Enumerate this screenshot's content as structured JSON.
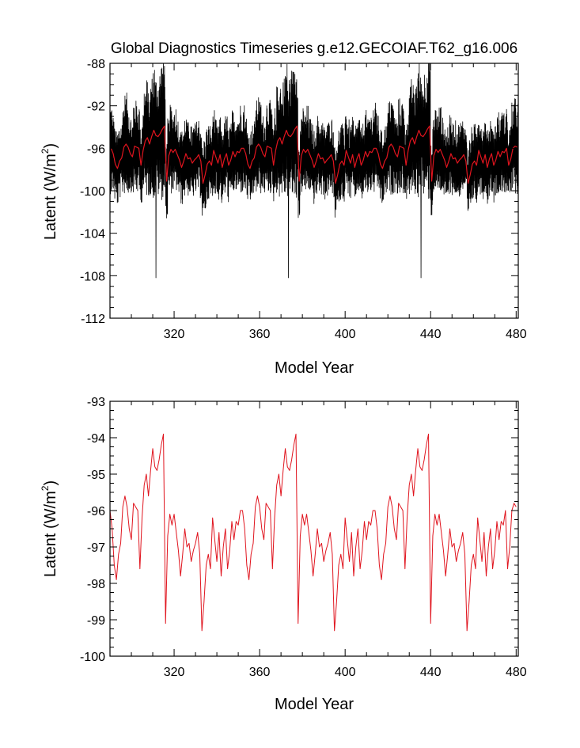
{
  "page": {
    "title": "Global Diagnostics Timeseries g.e12.GECOIAF.T62_g16.006"
  },
  "colors": {
    "monthly": "#000000",
    "annual": "#e0141e",
    "axis": "#000000"
  },
  "chart_data": [
    {
      "id": "top",
      "type": "line",
      "xlabel": "Model Year",
      "ylabel": "Latent (W/m",
      "ylabel_sup": "2",
      "ylabel_close": ")",
      "xlim": [
        290,
        481
      ],
      "ylim": [
        -112,
        -88
      ],
      "xticks": [
        320,
        360,
        400,
        440,
        480
      ],
      "xtick_labels": [
        "320",
        "360",
        "400",
        "440",
        "480"
      ],
      "yticks": [
        -112,
        -108,
        -104,
        -100,
        -96,
        -92,
        -88
      ],
      "ytick_labels": [
        "-112",
        "-108",
        "-104",
        "-100",
        "-96",
        "-92",
        "-88"
      ],
      "series": [
        {
          "name": "monthly",
          "style": "monthly-anomaly",
          "color": "#000000",
          "start_year": 290,
          "points_per_year": 12,
          "amplitude_base": 3.2,
          "amplitude_scale": 0.6,
          "spike_years": [
            311.5,
            373.5,
            435.5
          ],
          "spike_min": -108.2
        },
        {
          "name": "annual mean",
          "ref": "annual",
          "color": "#e0141e"
        }
      ]
    },
    {
      "id": "bottom",
      "type": "line",
      "xlabel": "Model Year",
      "ylabel": "Latent (W/m",
      "ylabel_sup": "2",
      "ylabel_close": ")",
      "xlim": [
        290,
        481
      ],
      "ylim": [
        -100,
        -93
      ],
      "xticks": [
        320,
        360,
        400,
        440,
        480
      ],
      "xtick_labels": [
        "320",
        "360",
        "400",
        "440",
        "480"
      ],
      "yticks": [
        -100,
        -99,
        -98,
        -97,
        -96,
        -95,
        -94,
        -93
      ],
      "ytick_labels": [
        "-100",
        "-99",
        "-98",
        "-97",
        "-96",
        "-95",
        "-94",
        "-93"
      ],
      "series": [
        {
          "name": "annual mean",
          "color": "#e0141e",
          "x_start": 290,
          "values_cycle": [
            -96.0,
            -96.5,
            -97.5,
            -97.9,
            -97.2,
            -96.9,
            -95.9,
            -95.6,
            -95.9,
            -96.5,
            -96.8,
            -95.8,
            -95.9,
            -96.0,
            -97.6,
            -96.2,
            -95.3,
            -95.0,
            -95.6,
            -94.9,
            -94.3,
            -94.8,
            -94.9,
            -94.6,
            -94.2,
            -93.9,
            -99.1,
            -96.7,
            -96.1,
            -96.4,
            -96.1,
            -96.6,
            -97.1,
            -97.8,
            -97.2,
            -96.5,
            -97.0,
            -96.9,
            -97.4,
            -97.1,
            -96.9,
            -96.6,
            -97.2,
            -99.3,
            -98.5,
            -97.5,
            -97.2,
            -97.6,
            -96.2,
            -96.8,
            -97.4,
            -96.6,
            -97.8,
            -97.0,
            -96.5,
            -97.6,
            -97.1,
            -96.3,
            -96.8,
            -96.3,
            -96.4,
            -96.0,
            -95.3,
            -96.6,
            -96.3,
            -96.9,
            -96.0,
            -96.7,
            -97.6,
            -98.0
          ],
          "cycle_length": 62,
          "extra_tail": [
            -97.6,
            -97.0,
            -96.0,
            -95.8,
            -95.9
          ]
        }
      ]
    }
  ]
}
